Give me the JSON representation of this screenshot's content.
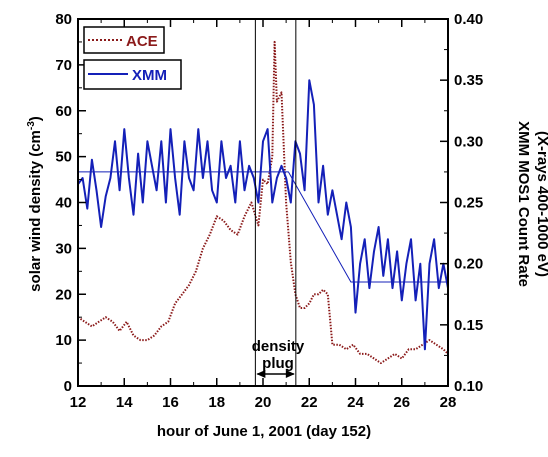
{
  "chart_data": {
    "type": "line",
    "xlabel": "hour of June 1, 2001 (day 152)",
    "ylabel_left": "solar wind density (cm",
    "ylabel_left_sup": "-3",
    "ylabel_left_end": ")",
    "ylabel_right_line1": "XMM MOS1 Count Rate",
    "ylabel_right_line2": "(X-rays 400-1000 eV)",
    "xlim": [
      12,
      28
    ],
    "ylim_left": [
      0,
      80
    ],
    "ylim_right": [
      0.1,
      0.4
    ],
    "x_ticks": [
      "12",
      "14",
      "16",
      "18",
      "20",
      "22",
      "24",
      "26",
      "28"
    ],
    "y_left_ticks": [
      "0",
      "10",
      "20",
      "30",
      "40",
      "50",
      "60",
      "70",
      "80"
    ],
    "y_right_ticks": [
      "0.10",
      "0.15",
      "0.20",
      "0.25",
      "0.30",
      "0.35",
      "0.40"
    ],
    "annotation": {
      "line1": "density",
      "line2": "plug",
      "x_start": 19.67,
      "x_end": 21.42
    },
    "legend": [
      "ACE",
      "XMM"
    ],
    "series": [
      {
        "name": "ACE",
        "axis": "left",
        "color": "#8b1a1a",
        "style": "dotted",
        "x": [
          12.0,
          12.3,
          12.6,
          12.9,
          13.2,
          13.5,
          13.8,
          14.1,
          14.4,
          14.7,
          15.0,
          15.3,
          15.6,
          15.9,
          16.2,
          16.5,
          16.8,
          17.1,
          17.4,
          17.7,
          18.0,
          18.3,
          18.6,
          18.9,
          19.2,
          19.5,
          19.8,
          20.0,
          20.2,
          20.4,
          20.5,
          20.6,
          20.8,
          21.0,
          21.2,
          21.4,
          21.6,
          21.8,
          22.0,
          22.2,
          22.4,
          22.6,
          22.8,
          23.0,
          23.3,
          23.6,
          23.9,
          24.2,
          24.5,
          24.8,
          25.1,
          25.4,
          25.7,
          26.0,
          26.3,
          26.6,
          26.9,
          27.2,
          27.5,
          27.8,
          28.0
        ],
        "values": [
          15,
          14,
          13,
          14,
          15,
          14,
          12,
          14,
          11,
          10,
          10,
          11,
          13,
          14,
          18,
          20,
          22,
          25,
          30,
          33,
          37,
          36,
          34,
          33,
          37,
          40,
          35,
          45,
          44,
          50,
          75,
          62,
          64,
          40,
          27,
          20,
          17,
          17,
          18,
          20,
          20,
          21,
          20,
          9,
          9,
          8,
          9,
          7,
          7,
          6,
          5,
          6,
          7,
          6,
          8,
          8,
          9,
          10,
          9,
          8,
          7
        ]
      },
      {
        "name": "XMM",
        "axis": "right",
        "color": "#1420b8",
        "style": "solid",
        "x": [
          12.0,
          12.2,
          12.4,
          12.6,
          12.8,
          13.0,
          13.2,
          13.4,
          13.6,
          13.8,
          14.0,
          14.2,
          14.4,
          14.6,
          14.8,
          15.0,
          15.2,
          15.4,
          15.6,
          15.8,
          16.0,
          16.2,
          16.4,
          16.6,
          16.8,
          17.0,
          17.2,
          17.4,
          17.6,
          17.8,
          18.0,
          18.2,
          18.4,
          18.6,
          18.8,
          19.0,
          19.2,
          19.4,
          19.6,
          19.8,
          20.0,
          20.2,
          20.4,
          20.6,
          20.8,
          21.0,
          21.2,
          21.4,
          21.6,
          21.8,
          22.0,
          22.2,
          22.4,
          22.6,
          22.8,
          23.0,
          23.2,
          23.4,
          23.6,
          23.8,
          24.0,
          24.2,
          24.4,
          24.6,
          24.8,
          25.0,
          25.2,
          25.4,
          25.6,
          25.8,
          26.0,
          26.2,
          26.4,
          26.6,
          26.8,
          27.0,
          27.2,
          27.4,
          27.6,
          27.8,
          28.0
        ],
        "values": [
          0.265,
          0.27,
          0.245,
          0.285,
          0.26,
          0.23,
          0.255,
          0.27,
          0.3,
          0.26,
          0.31,
          0.27,
          0.24,
          0.29,
          0.25,
          0.3,
          0.28,
          0.26,
          0.3,
          0.25,
          0.31,
          0.27,
          0.24,
          0.3,
          0.27,
          0.26,
          0.31,
          0.27,
          0.3,
          0.26,
          0.25,
          0.3,
          0.27,
          0.28,
          0.25,
          0.3,
          0.26,
          0.28,
          0.27,
          0.25,
          0.3,
          0.31,
          0.25,
          0.27,
          0.28,
          0.27,
          0.25,
          0.3,
          0.29,
          0.26,
          0.35,
          0.33,
          0.25,
          0.28,
          0.24,
          0.26,
          0.24,
          0.22,
          0.25,
          0.23,
          0.16,
          0.2,
          0.22,
          0.18,
          0.21,
          0.23,
          0.19,
          0.22,
          0.18,
          0.21,
          0.17,
          0.2,
          0.22,
          0.17,
          0.2,
          0.13,
          0.2,
          0.22,
          0.18,
          0.2,
          0.18
        ]
      },
      {
        "axis": "right",
        "color": "#1420b8",
        "style": "thin",
        "x": [
          12.0,
          19.4,
          20.2,
          21.1,
          23.8,
          28.0
        ],
        "values": [
          0.275,
          0.275,
          0.275,
          0.275,
          0.185,
          0.185
        ]
      }
    ]
  }
}
